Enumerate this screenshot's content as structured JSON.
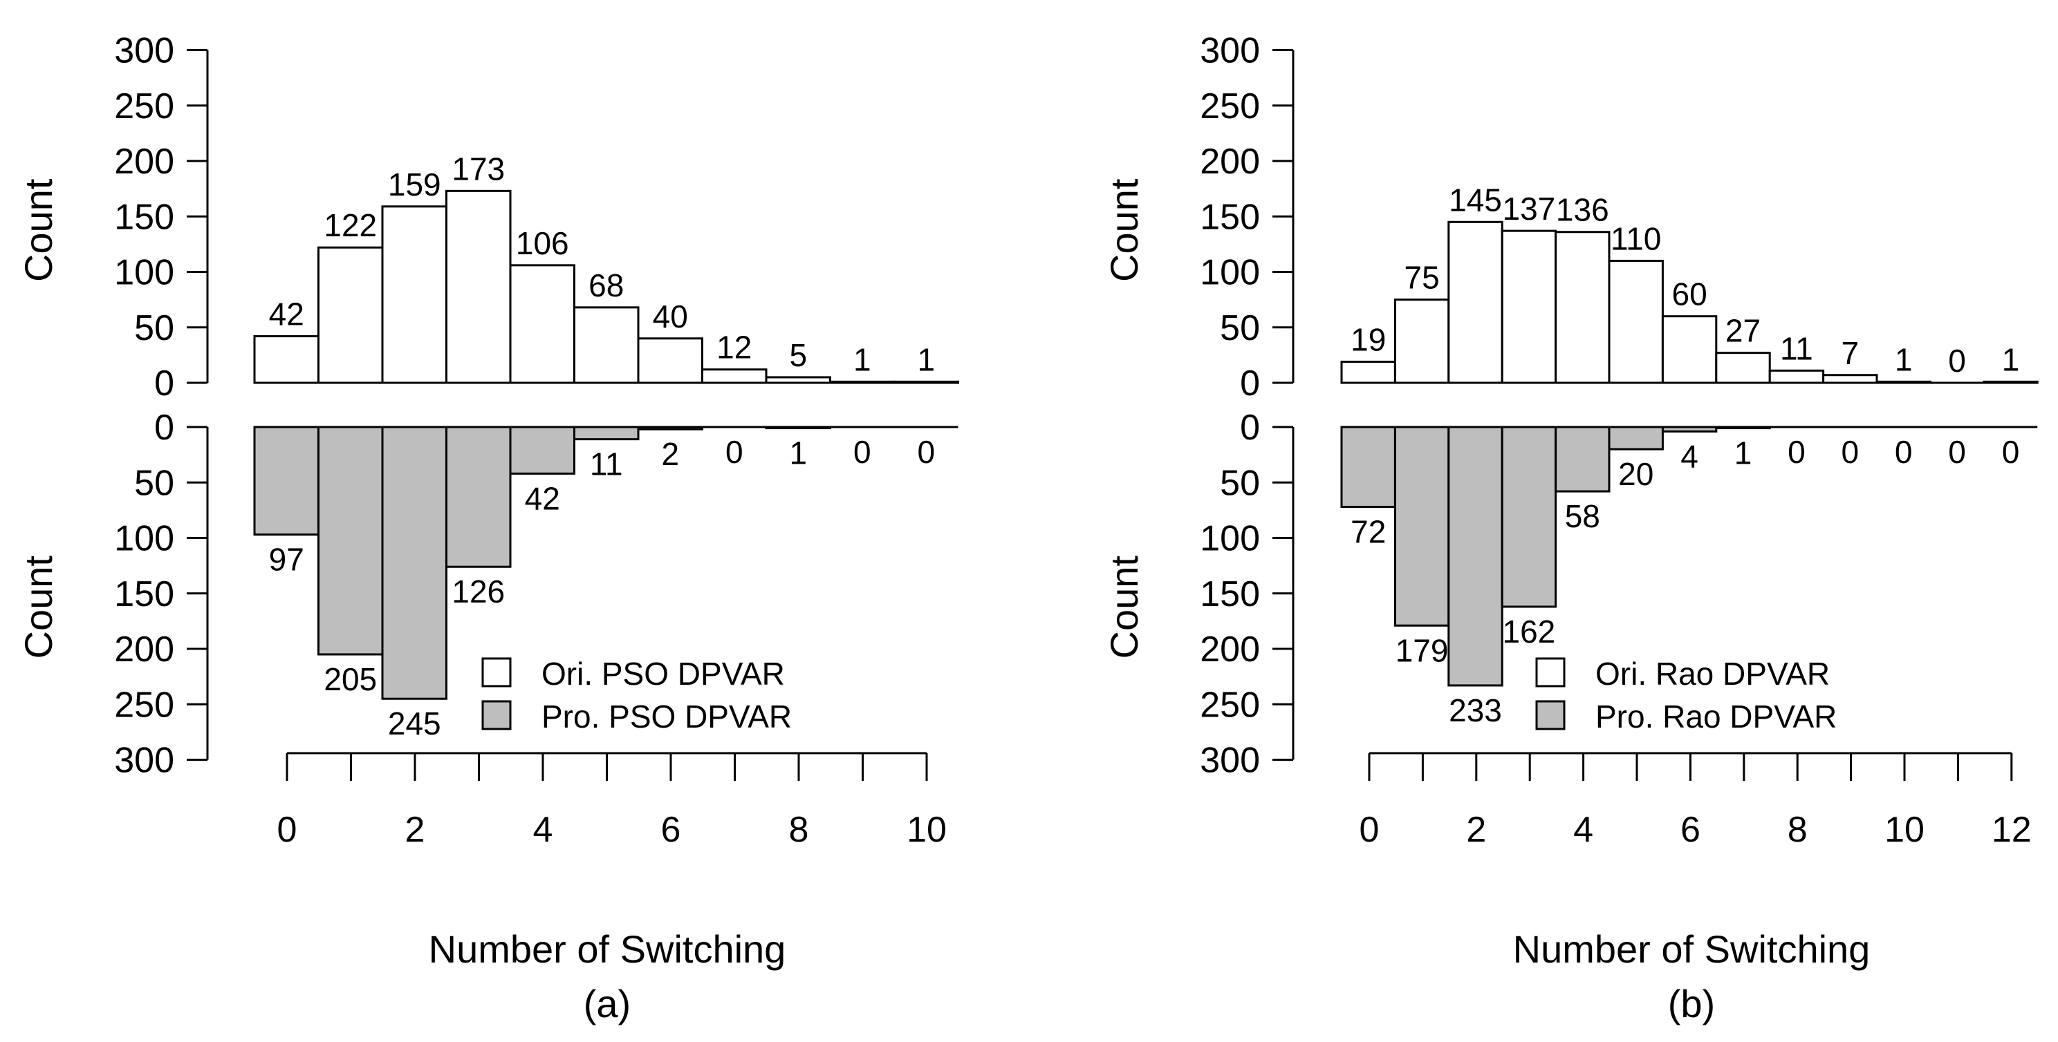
{
  "colors": {
    "top_fill": "#ffffff",
    "bottom_fill": "#bebebe",
    "stroke": "#000000",
    "background": "#ffffff"
  },
  "chart_data": [
    {
      "type": "bar",
      "panel": "(a)",
      "caption": "(a)",
      "xlabel": "Number of Switching",
      "ylabel_top": "Count",
      "ylabel_bottom": "Count",
      "categories": [
        0,
        1,
        2,
        3,
        4,
        5,
        6,
        7,
        8,
        9,
        10
      ],
      "x_ticks": [
        0,
        1,
        2,
        3,
        4,
        5,
        6,
        7,
        8,
        9,
        10
      ],
      "x_tick_labels": [
        "0",
        "2",
        "4",
        "6",
        "8",
        "10"
      ],
      "y_ticks": [
        "0",
        "50",
        "100",
        "150",
        "200",
        "250",
        "300"
      ],
      "ylim": [
        0,
        300
      ],
      "series": [
        {
          "name": "Ori. PSO DPVAR",
          "position": "top",
          "values": [
            42,
            122,
            159,
            173,
            106,
            68,
            40,
            12,
            5,
            1,
            1
          ]
        },
        {
          "name": "Pro. PSO DPVAR",
          "position": "bottom",
          "values": [
            97,
            205,
            245,
            126,
            42,
            11,
            2,
            0,
            1,
            0,
            0
          ]
        }
      ],
      "legend": [
        "Ori. PSO DPVAR",
        "Pro. PSO DPVAR"
      ],
      "legend_position": "bottom-right of lower half"
    },
    {
      "type": "bar",
      "panel": "(b)",
      "caption": "(b)",
      "xlabel": "Number of Switching",
      "ylabel_top": "Count",
      "ylabel_bottom": "Count",
      "categories": [
        0,
        1,
        2,
        3,
        4,
        5,
        6,
        7,
        8,
        9,
        10,
        11,
        12
      ],
      "x_ticks": [
        0,
        1,
        2,
        3,
        4,
        5,
        6,
        7,
        8,
        9,
        10,
        11,
        12
      ],
      "x_tick_labels": [
        "0",
        "2",
        "4",
        "6",
        "8",
        "10",
        "12"
      ],
      "y_ticks": [
        "0",
        "50",
        "100",
        "150",
        "200",
        "250",
        "300"
      ],
      "ylim": [
        0,
        300
      ],
      "series": [
        {
          "name": "Ori. Rao DPVAR",
          "position": "top",
          "values": [
            19,
            75,
            145,
            137,
            136,
            110,
            60,
            27,
            11,
            7,
            1,
            0,
            1
          ]
        },
        {
          "name": "Pro. Rao DPVAR",
          "position": "bottom",
          "values": [
            72,
            179,
            233,
            162,
            58,
            20,
            4,
            1,
            0,
            0,
            0,
            0,
            0
          ]
        }
      ],
      "legend": [
        "Ori. Rao DPVAR",
        "Pro. Rao DPVAR"
      ],
      "legend_position": "bottom-right of lower half"
    }
  ]
}
